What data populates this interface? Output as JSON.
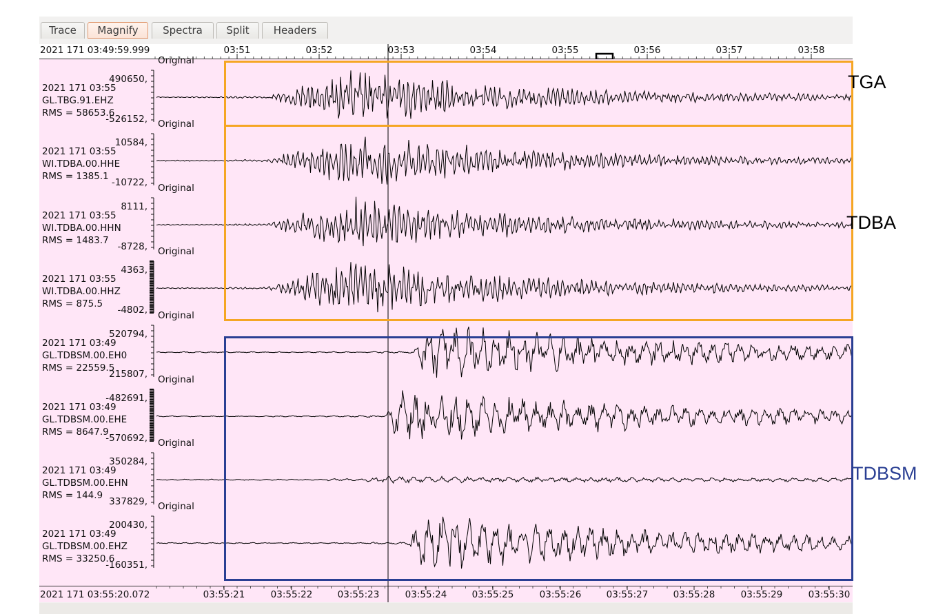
{
  "tabs": [
    {
      "label": "Trace",
      "active": false
    },
    {
      "label": "Magnify",
      "active": true
    },
    {
      "label": "Spectra",
      "active": false
    },
    {
      "label": "Split",
      "active": false
    },
    {
      "label": "Headers",
      "active": false
    }
  ],
  "top_axis": {
    "start_label": "2021 171 03:49:59.999",
    "ticks": [
      "03:51",
      "03:52",
      "03:53",
      "03:54",
      "03:55",
      "03:56",
      "03:57",
      "03:58"
    ]
  },
  "bottom_axis": {
    "start_label": "2021 171 03:55:20.072",
    "ticks": [
      "03:55:21",
      "03:55:22",
      "03:55:23",
      "03:55:24",
      "03:55:25",
      "03:55:26",
      "03:55:27",
      "03:55:28",
      "03:55:29",
      "03:55:30"
    ]
  },
  "traces": [
    {
      "date": "2021 171 03:55",
      "channel": "GL.TBG.91.EHZ",
      "rms": "RMS = 58653.6",
      "max": "490650,",
      "min": "-526152,",
      "label": "Original",
      "onset": 0.16
    },
    {
      "date": "2021 171 03:55",
      "channel": "WI.TDBA.00.HHE",
      "rms": "RMS = 1385.1",
      "max": "10584,",
      "min": "-10722,",
      "label": "Original",
      "onset": 0.16
    },
    {
      "date": "2021 171 03:55",
      "channel": "WI.TDBA.00.HHN",
      "rms": "RMS = 1483.7",
      "max": "8111,",
      "min": "-8728,",
      "label": "Original",
      "onset": 0.16
    },
    {
      "date": "2021 171 03:55",
      "channel": "WI.TDBA.00.HHZ",
      "rms": "RMS = 875.5",
      "max": "4363,",
      "min": "-4802,",
      "label": "Original",
      "onset": 0.16
    },
    {
      "date": "2021 171 03:49",
      "channel": "GL.TDBSM.00.EH0",
      "rms": "RMS = 22559.5",
      "max": "520794,",
      "min": "215807,",
      "label": "Original",
      "onset": 0.37
    },
    {
      "date": "2021 171 03:49",
      "channel": "GL.TDBSM.00.EHE",
      "rms": "RMS = 8647.9",
      "max": "-482691,",
      "min": "-570692,",
      "label": "Original",
      "onset": 0.33
    },
    {
      "date": "2021 171 03:49",
      "channel": "GL.TDBSM.00.EHN",
      "rms": "RMS = 144.9",
      "max": "350284,",
      "min": "337829,",
      "label": "Original",
      "onset": 0.3
    },
    {
      "date": "2021 171 03:49",
      "channel": "GL.TDBSM.00.EHZ",
      "rms": "RMS = 33250.6",
      "max": "200430,",
      "min": "-160351,",
      "label": "Original",
      "onset": 0.36
    }
  ],
  "annotations": [
    {
      "text": "TGA",
      "color": "#000000"
    },
    {
      "text": "TDBA",
      "color": "#000000"
    },
    {
      "text": "TDBSM",
      "color": "#2a3f93"
    }
  ],
  "colors": {
    "plot_background": "#ffe6f7",
    "highlight_orange": "#f5a623",
    "highlight_blue": "#2a3f93",
    "active_tab": "#e0996f"
  }
}
